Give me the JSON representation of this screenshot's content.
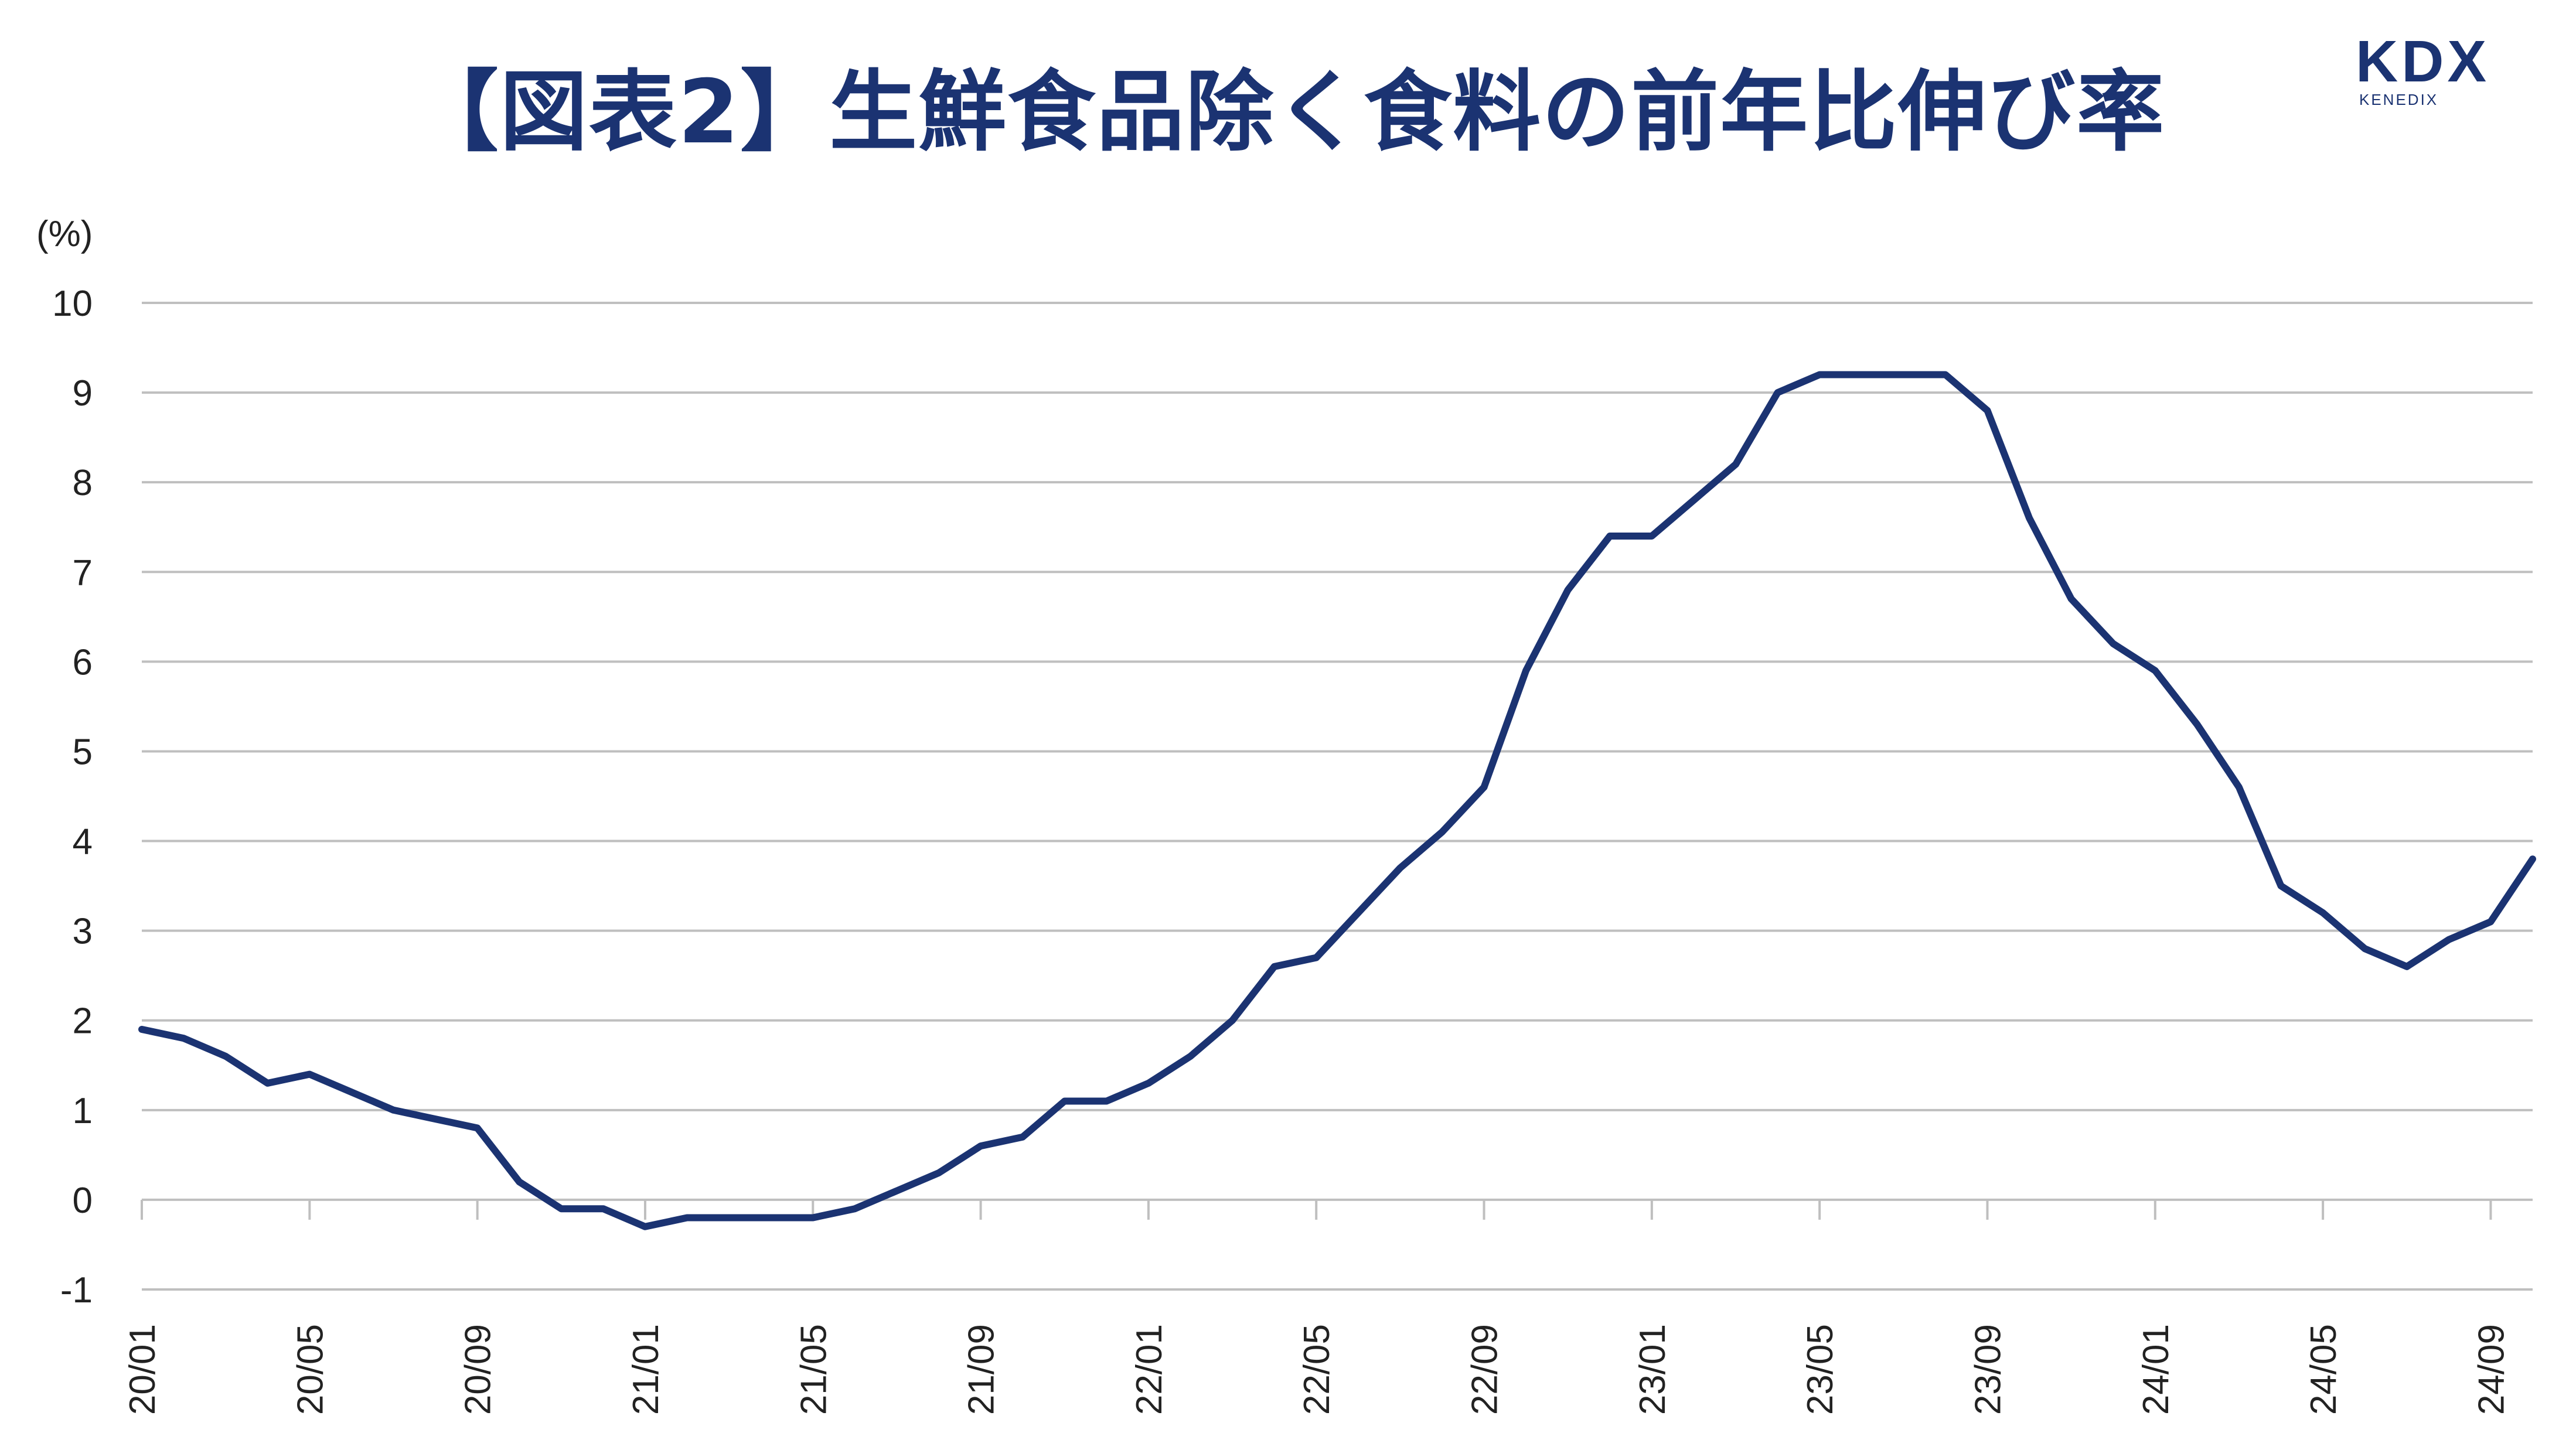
{
  "title": "【図表2】生鮮食品除く食料の前年比伸び率",
  "logo": {
    "name": "KDX",
    "sub": "KENEDIX"
  },
  "colors": {
    "line": "#1b3372",
    "grid": "#bfbfbf",
    "text": "#222222"
  },
  "chart_data": {
    "type": "line",
    "title": "【図表2】生鮮食品除く食料の前年比伸び率",
    "ylabel": "(%)",
    "ylim": [
      -1,
      10
    ],
    "yticks": [
      10,
      9,
      8,
      7,
      6,
      5,
      4,
      3,
      2,
      1,
      0,
      -1
    ],
    "grid": true,
    "x_tick_labels": [
      "20/01",
      "20/05",
      "20/09",
      "21/01",
      "21/05",
      "21/09",
      "22/01",
      "22/05",
      "22/09",
      "23/01",
      "23/05",
      "23/09",
      "24/01",
      "24/05",
      "24/09"
    ],
    "x": [
      "20/01",
      "20/02",
      "20/03",
      "20/04",
      "20/05",
      "20/06",
      "20/07",
      "20/08",
      "20/09",
      "20/10",
      "20/11",
      "20/12",
      "21/01",
      "21/02",
      "21/03",
      "21/04",
      "21/05",
      "21/06",
      "21/07",
      "21/08",
      "21/09",
      "21/10",
      "21/11",
      "21/12",
      "22/01",
      "22/02",
      "22/03",
      "22/04",
      "22/05",
      "22/06",
      "22/07",
      "22/08",
      "22/09",
      "22/10",
      "22/11",
      "22/12",
      "23/01",
      "23/02",
      "23/03",
      "23/04",
      "23/05",
      "23/06",
      "23/07",
      "23/08",
      "23/09",
      "23/10",
      "23/11",
      "23/12",
      "24/01",
      "24/02",
      "24/03",
      "24/04",
      "24/05",
      "24/06",
      "24/07",
      "24/08",
      "24/09",
      "24/10"
    ],
    "series": [
      {
        "values": [
          1.9,
          1.8,
          1.6,
          1.3,
          1.4,
          1.2,
          1.0,
          0.9,
          0.8,
          0.2,
          -0.1,
          -0.1,
          -0.3,
          -0.2,
          -0.2,
          -0.2,
          -0.2,
          -0.1,
          0.1,
          0.3,
          0.6,
          0.7,
          1.1,
          1.1,
          1.3,
          1.6,
          2.0,
          2.6,
          2.7,
          3.2,
          3.7,
          4.1,
          4.6,
          5.9,
          6.8,
          7.4,
          7.4,
          7.8,
          8.2,
          9.0,
          9.2,
          9.2,
          9.2,
          9.2,
          8.8,
          7.6,
          6.7,
          6.2,
          5.9,
          5.3,
          4.6,
          3.5,
          3.2,
          2.8,
          2.6,
          2.9,
          3.1,
          3.8
        ]
      }
    ]
  }
}
